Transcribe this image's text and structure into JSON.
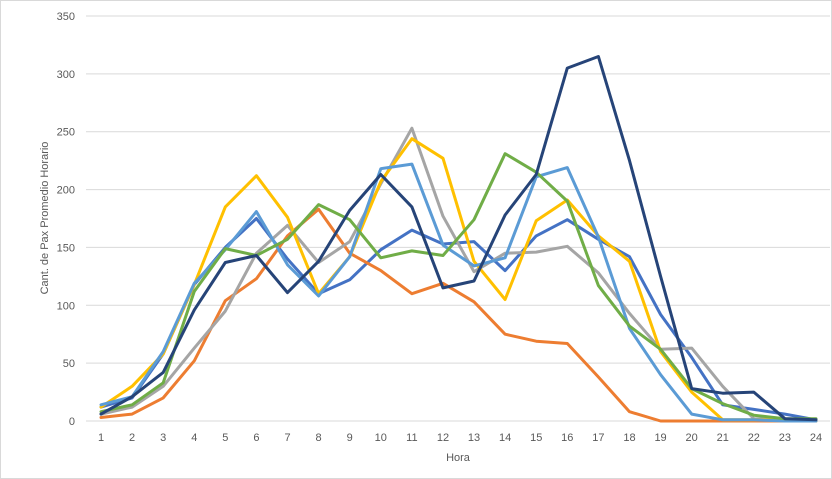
{
  "chart_data": {
    "type": "line",
    "title": "",
    "xlabel": "Hora",
    "ylabel": "Cant. de Pax Promedio Horario",
    "x": [
      1,
      2,
      3,
      4,
      5,
      6,
      7,
      8,
      9,
      10,
      11,
      12,
      13,
      14,
      15,
      16,
      17,
      18,
      19,
      20,
      21,
      22,
      23,
      24
    ],
    "ylim": [
      0,
      350
    ],
    "yticks": [
      0,
      50,
      100,
      150,
      200,
      250,
      300,
      350
    ],
    "grid": "horizontal",
    "legend": "none",
    "series": [
      {
        "color": "#4472c4",
        "values": [
          12,
          20,
          58,
          118,
          150,
          175,
          140,
          110,
          122,
          148,
          165,
          153,
          155,
          130,
          160,
          174,
          157,
          142,
          92,
          55,
          14,
          10,
          6,
          1
        ]
      },
      {
        "color": "#ed7d31",
        "values": [
          3,
          6,
          20,
          52,
          104,
          123,
          160,
          183,
          145,
          130,
          110,
          119,
          103,
          75,
          69,
          67,
          38,
          8,
          0,
          0,
          0,
          0,
          0,
          0
        ]
      },
      {
        "color": "#a5a5a5",
        "values": [
          6,
          12,
          30,
          63,
          95,
          145,
          169,
          137,
          155,
          205,
          253,
          177,
          129,
          145,
          146,
          151,
          128,
          93,
          62,
          63,
          30,
          2,
          1,
          0
        ]
      },
      {
        "color": "#ffc000",
        "values": [
          12,
          30,
          58,
          118,
          185,
          212,
          176,
          110,
          142,
          207,
          244,
          227,
          138,
          105,
          173,
          191,
          160,
          138,
          60,
          25,
          1,
          1,
          1,
          0
        ]
      },
      {
        "color": "#5b9bd5",
        "values": [
          14,
          21,
          60,
          119,
          148,
          181,
          135,
          108,
          142,
          218,
          222,
          152,
          134,
          141,
          211,
          219,
          159,
          80,
          40,
          6,
          1,
          1,
          0,
          0
        ]
      },
      {
        "color": "#70ad47",
        "values": [
          8,
          14,
          33,
          112,
          149,
          143,
          157,
          187,
          174,
          141,
          147,
          143,
          174,
          231,
          215,
          190,
          117,
          82,
          62,
          28,
          15,
          5,
          2,
          2
        ]
      },
      {
        "color": "#264478",
        "values": [
          6,
          21,
          42,
          96,
          137,
          143,
          111,
          138,
          182,
          213,
          185,
          115,
          121,
          178,
          213,
          305,
          315,
          225,
          125,
          28,
          24,
          25,
          2,
          1
        ]
      }
    ]
  }
}
